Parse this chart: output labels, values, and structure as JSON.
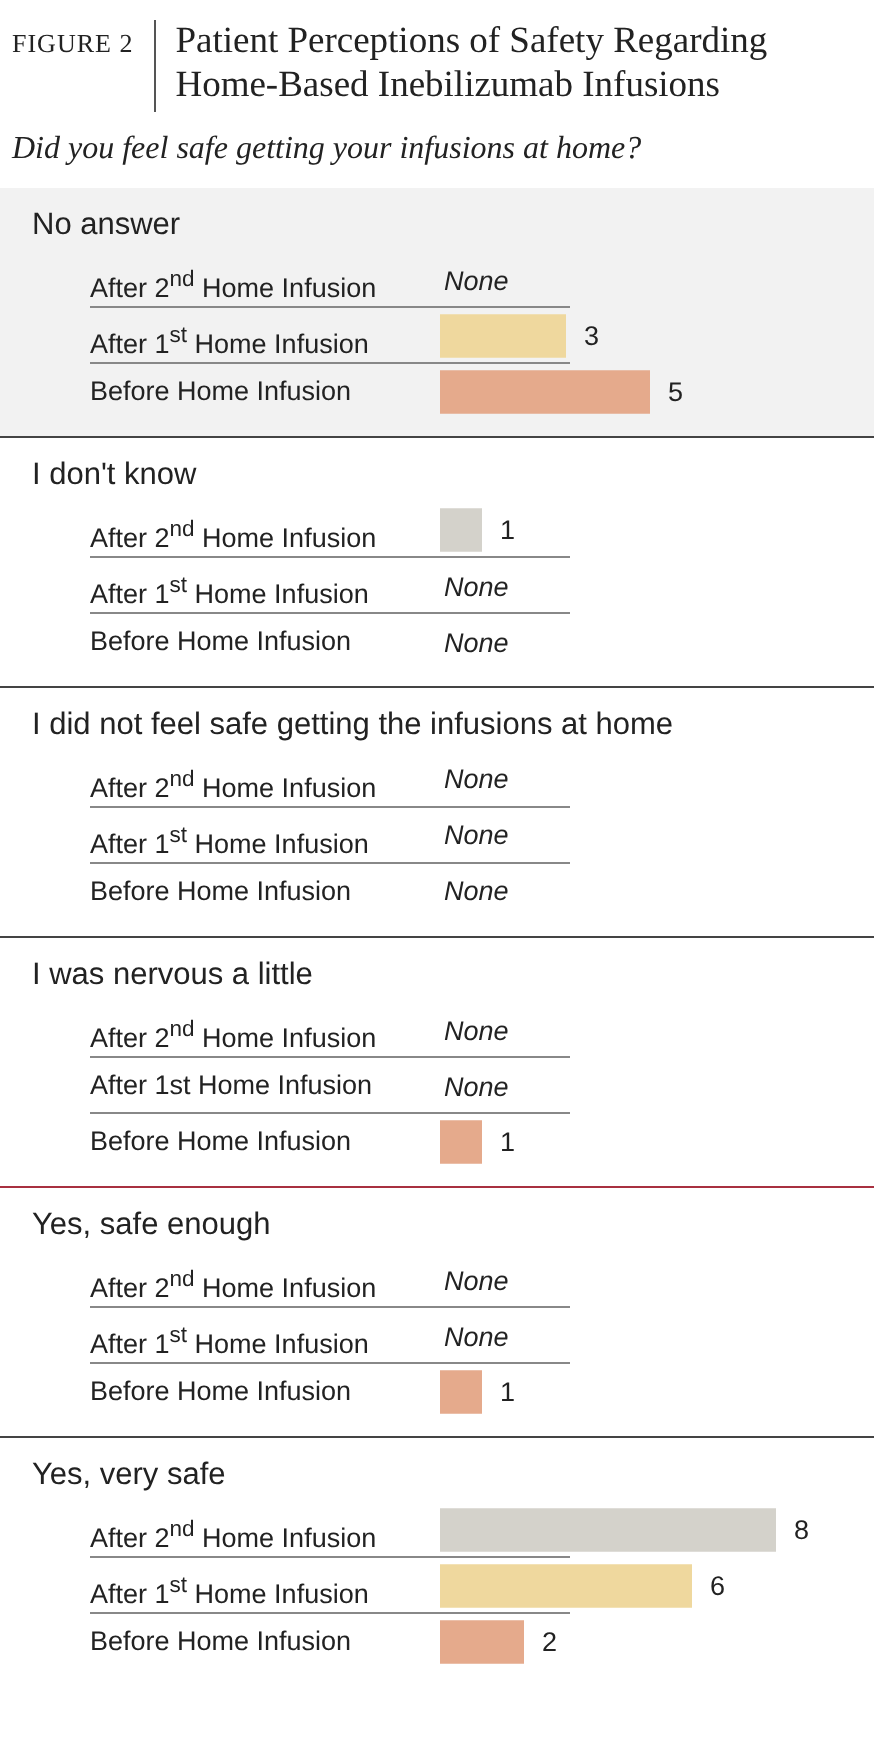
{
  "chart_data": [
    {
      "type": "other",
      "title": "Patient Perceptions of Safety Regarding Home-Based Inebilizumab Infusions",
      "subtitle": "Did you feel safe getting your infusions at home?",
      "annotations": [
        "FIGURE 2"
      ]
    },
    {
      "type": "bar",
      "orientation": "horizontal",
      "title": "No answer",
      "categories": [
        "After 2$^{nd}$ Home Infusion",
        "After 1$^{st}$ Home Infusion",
        "Before Home Infusion"
      ],
      "values": [
        0,
        3,
        5
      ],
      "value_labels": [
        "None",
        "3",
        "5"
      ],
      "colors": [
        "#d4d2cb",
        "#efd89e",
        "#e5aa8c"
      ],
      "tick_labels": "y"
    },
    {
      "type": "bar",
      "orientation": "horizontal",
      "title": "I don't know",
      "categories": [
        "After 2$^{nd}$ Home Infusion",
        "After 1$^{st}$ Home Infusion",
        "Before Home Infusion"
      ],
      "values": [
        1,
        0,
        0
      ],
      "value_labels": [
        "1",
        "None",
        "None"
      ],
      "colors": [
        "#d4d2cb",
        "#efd89e",
        "#e5aa8c"
      ],
      "tick_labels": "y"
    },
    {
      "type": "other",
      "title": "I did not feel safe getting the infusions at home",
      "categories": [
        "After 2$^{nd}$ Home Infusion",
        "After 1$^{st}$ Home Infusion",
        "Before Home Infusion"
      ],
      "value_labels": [
        "None",
        "None",
        "None"
      ]
    },
    {
      "type": "bar",
      "orientation": "horizontal",
      "title": "I was nervous a little",
      "categories": [
        "After 2$^{nd}$ Home Infusion",
        "After 1st Home Infusion",
        "Before Home Infusion"
      ],
      "values": [
        0,
        0,
        1
      ],
      "value_labels": [
        "None",
        "None",
        "1"
      ],
      "colors": [
        "#d4d2cb",
        "#efd89e",
        "#e5aa8c"
      ],
      "tick_labels": "y"
    },
    {
      "type": "bar",
      "orientation": "horizontal",
      "title": "Yes, safe enough",
      "categories": [
        "After 2$^{nd}$ Home Infusion",
        "After 1$^{st}$ Home Infusion",
        "Before Home Infusion"
      ],
      "values": [
        0,
        0,
        1
      ],
      "value_labels": [
        "None",
        "None",
        "1"
      ],
      "colors": [
        "#d4d2cb",
        "#efd89e",
        "#e5aa8c"
      ],
      "tick_labels": "y"
    },
    {
      "type": "bar",
      "orientation": "horizontal",
      "title": "Yes, very safe",
      "categories": [
        "After 2$^{nd}$ Home Infusion",
        "After 1$^{st}$ Home Infusion",
        "Before Home Infusion"
      ],
      "values": [
        8,
        6,
        2
      ],
      "value_labels": [
        "8",
        "6",
        "2"
      ],
      "colors": [
        "#d4d2cb",
        "#efd89e",
        "#e5aa8c"
      ],
      "tick_labels": "y"
    }
  ]
}
